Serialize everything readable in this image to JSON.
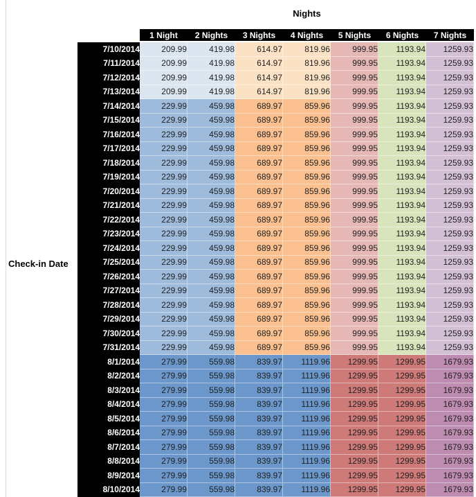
{
  "chart_data": {
    "type": "heatmap",
    "title": "Nights",
    "ylabel": "Check-in Date",
    "columns": [
      "1 Night",
      "2 Nights",
      "3 Nights",
      "4 Nights",
      "5 Nights",
      "6 Nights",
      "7 Nights"
    ],
    "rows": [
      {
        "date": "7/10/2014",
        "tier": "a",
        "values": [
          209.99,
          419.98,
          614.97,
          819.96,
          999.95,
          1193.94,
          1259.93
        ]
      },
      {
        "date": "7/11/2014",
        "tier": "a",
        "values": [
          209.99,
          419.98,
          614.97,
          819.96,
          999.95,
          1193.94,
          1259.93
        ]
      },
      {
        "date": "7/12/2014",
        "tier": "a",
        "values": [
          209.99,
          419.98,
          614.97,
          819.96,
          999.95,
          1193.94,
          1259.93
        ]
      },
      {
        "date": "7/13/2014",
        "tier": "a",
        "values": [
          209.99,
          419.98,
          614.97,
          819.96,
          999.95,
          1193.94,
          1259.93
        ]
      },
      {
        "date": "7/14/2014",
        "tier": "b",
        "values": [
          229.99,
          459.98,
          689.97,
          859.96,
          999.95,
          1193.94,
          1259.93
        ]
      },
      {
        "date": "7/15/2014",
        "tier": "b",
        "values": [
          229.99,
          459.98,
          689.97,
          859.96,
          999.95,
          1193.94,
          1259.93
        ]
      },
      {
        "date": "7/16/2014",
        "tier": "b",
        "values": [
          229.99,
          459.98,
          689.97,
          859.96,
          999.95,
          1193.94,
          1259.93
        ]
      },
      {
        "date": "7/17/2014",
        "tier": "b",
        "values": [
          229.99,
          459.98,
          689.97,
          859.96,
          999.95,
          1193.94,
          1259.93
        ]
      },
      {
        "date": "7/18/2014",
        "tier": "b",
        "values": [
          229.99,
          459.98,
          689.97,
          859.96,
          999.95,
          1193.94,
          1259.93
        ]
      },
      {
        "date": "7/19/2014",
        "tier": "b",
        "values": [
          229.99,
          459.98,
          689.97,
          859.96,
          999.95,
          1193.94,
          1259.93
        ]
      },
      {
        "date": "7/20/2014",
        "tier": "b",
        "values": [
          229.99,
          459.98,
          689.97,
          859.96,
          999.95,
          1193.94,
          1259.93
        ]
      },
      {
        "date": "7/21/2014",
        "tier": "b",
        "values": [
          229.99,
          459.98,
          689.97,
          859.96,
          999.95,
          1193.94,
          1259.93
        ]
      },
      {
        "date": "7/22/2014",
        "tier": "b",
        "values": [
          229.99,
          459.98,
          689.97,
          859.96,
          999.95,
          1193.94,
          1259.93
        ]
      },
      {
        "date": "7/23/2014",
        "tier": "b",
        "values": [
          229.99,
          459.98,
          689.97,
          859.96,
          999.95,
          1193.94,
          1259.93
        ]
      },
      {
        "date": "7/24/2014",
        "tier": "b",
        "values": [
          229.99,
          459.98,
          689.97,
          859.96,
          999.95,
          1193.94,
          1259.93
        ]
      },
      {
        "date": "7/25/2014",
        "tier": "b",
        "values": [
          229.99,
          459.98,
          689.97,
          859.96,
          999.95,
          1193.94,
          1259.93
        ]
      },
      {
        "date": "7/26/2014",
        "tier": "b",
        "values": [
          229.99,
          459.98,
          689.97,
          859.96,
          999.95,
          1193.94,
          1259.93
        ]
      },
      {
        "date": "7/27/2014",
        "tier": "b",
        "values": [
          229.99,
          459.98,
          689.97,
          859.96,
          999.95,
          1193.94,
          1259.93
        ]
      },
      {
        "date": "7/28/2014",
        "tier": "b",
        "values": [
          229.99,
          459.98,
          689.97,
          859.96,
          999.95,
          1193.94,
          1259.93
        ]
      },
      {
        "date": "7/29/2014",
        "tier": "b",
        "values": [
          229.99,
          459.98,
          689.97,
          859.96,
          999.95,
          1193.94,
          1259.93
        ]
      },
      {
        "date": "7/30/2014",
        "tier": "b",
        "values": [
          229.99,
          459.98,
          689.97,
          859.96,
          999.95,
          1193.94,
          1259.93
        ]
      },
      {
        "date": "7/31/2014",
        "tier": "b",
        "values": [
          229.99,
          459.98,
          689.97,
          859.96,
          999.95,
          1193.94,
          1259.93
        ]
      },
      {
        "date": "8/1/2014",
        "tier": "c",
        "values": [
          279.99,
          559.98,
          839.97,
          1119.96,
          1299.95,
          1299.95,
          1679.93
        ]
      },
      {
        "date": "8/2/2014",
        "tier": "c",
        "values": [
          279.99,
          559.98,
          839.97,
          1119.96,
          1299.95,
          1299.95,
          1679.93
        ]
      },
      {
        "date": "8/3/2014",
        "tier": "c",
        "values": [
          279.99,
          559.98,
          839.97,
          1119.96,
          1299.95,
          1299.95,
          1679.93
        ]
      },
      {
        "date": "8/4/2014",
        "tier": "c",
        "values": [
          279.99,
          559.98,
          839.97,
          1119.96,
          1299.95,
          1299.95,
          1679.93
        ]
      },
      {
        "date": "8/5/2014",
        "tier": "c",
        "values": [
          279.99,
          559.98,
          839.97,
          1119.96,
          1299.95,
          1299.95,
          1679.93
        ]
      },
      {
        "date": "8/6/2014",
        "tier": "c",
        "values": [
          279.99,
          559.98,
          839.97,
          1119.96,
          1299.95,
          1299.95,
          1679.93
        ]
      },
      {
        "date": "8/7/2014",
        "tier": "c",
        "values": [
          279.99,
          559.98,
          839.97,
          1119.96,
          1299.95,
          1299.95,
          1679.93
        ]
      },
      {
        "date": "8/8/2014",
        "tier": "c",
        "values": [
          279.99,
          559.98,
          839.97,
          1119.96,
          1299.95,
          1299.95,
          1679.93
        ]
      },
      {
        "date": "8/9/2014",
        "tier": "c",
        "values": [
          279.99,
          559.98,
          839.97,
          1119.96,
          1299.95,
          1299.95,
          1679.93
        ]
      },
      {
        "date": "8/10/2014",
        "tier": "c",
        "values": [
          279.99,
          559.98,
          839.97,
          1119.96,
          1299.95,
          1299.95,
          1679.93
        ]
      }
    ]
  },
  "colors": {
    "header_bg": "#000000",
    "header_fg": "#ffffff",
    "value_text": "#1f1f1f",
    "tiers": {
      "a": [
        "#dce6f1",
        "#dce6f1",
        "#fbe2c5",
        "#fbe2c5",
        "#e5b8b6",
        "#d7e4bc",
        "#d3c0d4"
      ],
      "b": [
        "#9fbbdc",
        "#9fbbdc",
        "#fac08f",
        "#fac08f",
        "#e5b8b6",
        "#d7e4bc",
        "#d3c0d4"
      ],
      "c": [
        "#6b97cb",
        "#6b97cb",
        "#6b97cb",
        "#6b97cb",
        "#ce7a78",
        "#ce7a78",
        "#bd8cb0"
      ]
    }
  }
}
